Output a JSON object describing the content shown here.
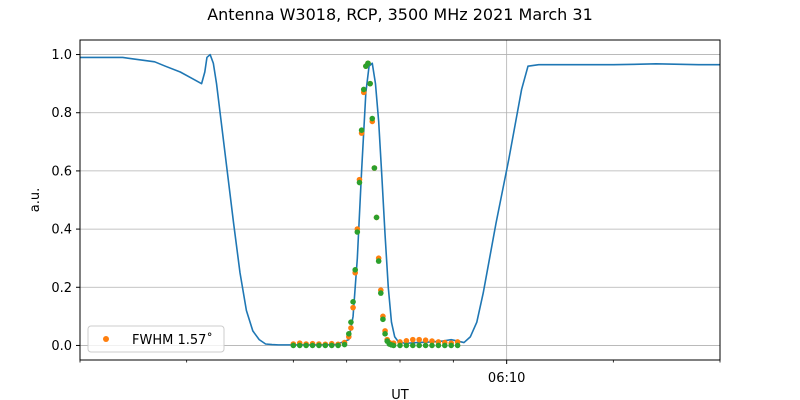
{
  "chart_data": {
    "type": "line",
    "title": "Antenna W3018, RCP, 3500 MHz 2021 March 31",
    "xlabel": "UT",
    "ylabel": "a.u.",
    "x_unit": "minutes relative to 06:10 UT",
    "xlim": [
      -20,
      10
    ],
    "ylim": [
      -0.05,
      1.05
    ],
    "yticks": [
      0.0,
      0.2,
      0.4,
      0.6,
      0.8,
      1.0
    ],
    "ytick_labels": [
      "0.0",
      "0.2",
      "0.4",
      "0.6",
      "0.8",
      "1.0"
    ],
    "xticks_major": [
      {
        "value": 0,
        "label": "06:10"
      }
    ],
    "xticks_minor": [
      -20,
      -15,
      -10,
      -7.5,
      -5,
      -2.5,
      5,
      10
    ],
    "grid": true,
    "legend": {
      "placement": "lower-left",
      "entries": [
        {
          "label": "FWHM 1.57$^\\circ$",
          "display": "FWHM 1.57˚",
          "color": "#ff7f0e",
          "marker": "circle"
        }
      ]
    },
    "series": [
      {
        "kind": "line",
        "color": "#1f77b4",
        "x": [
          -20,
          -19.0,
          -18.0,
          -17.5,
          -16.5,
          -16.0,
          -15.3,
          -14.8,
          -14.3,
          -14.15,
          -14.05,
          -13.9,
          -13.75,
          -13.6,
          -13.4,
          -13.1,
          -12.8,
          -12.5,
          -12.2,
          -11.9,
          -11.6,
          -11.3,
          -11.0,
          -10.7,
          -10.0,
          -9.0,
          -8.0,
          -7.4,
          -7.2,
          -7.0,
          -6.8,
          -6.6,
          -6.45,
          -6.3,
          -6.15,
          -6.0,
          -5.85,
          -5.7,
          -5.55,
          -5.4,
          -5.25,
          -5.1,
          -4.95,
          -4.8,
          -4.6,
          -4.2,
          -3.5,
          -3.0,
          -2.6,
          -2.3,
          -2.0,
          -1.7,
          -1.4,
          -1.1,
          -0.8,
          -0.5,
          -0.2,
          0.1,
          0.4,
          0.7,
          1.0,
          1.5,
          2.0,
          3.0,
          5.0,
          7.0,
          9.0,
          10.0
        ],
        "y": [
          0.99,
          0.99,
          0.99,
          0.985,
          0.975,
          0.96,
          0.94,
          0.92,
          0.9,
          0.94,
          0.99,
          1.0,
          0.97,
          0.9,
          0.78,
          0.6,
          0.42,
          0.25,
          0.12,
          0.05,
          0.02,
          0.005,
          0.003,
          0.002,
          0.002,
          0.002,
          0.003,
          0.02,
          0.1,
          0.3,
          0.6,
          0.87,
          0.96,
          0.97,
          0.9,
          0.77,
          0.58,
          0.38,
          0.2,
          0.08,
          0.03,
          0.015,
          0.01,
          0.008,
          0.008,
          0.01,
          0.012,
          0.015,
          0.02,
          0.015,
          0.01,
          0.03,
          0.08,
          0.18,
          0.3,
          0.42,
          0.53,
          0.64,
          0.76,
          0.88,
          0.96,
          0.965,
          0.965,
          0.965,
          0.965,
          0.968,
          0.965,
          0.965
        ]
      },
      {
        "kind": "scatter",
        "color": "#ff7f0e",
        "name": "FWHM 1.57$^\\circ$",
        "x": [
          -10.0,
          -9.7,
          -9.4,
          -9.1,
          -8.8,
          -8.5,
          -8.2,
          -7.9,
          -7.6,
          -7.4,
          -7.3,
          -7.2,
          -7.1,
          -7.0,
          -6.9,
          -6.8,
          -6.7,
          -6.6,
          -6.5,
          -6.4,
          -6.3,
          -6.2,
          -6.1,
          -6.0,
          -5.9,
          -5.8,
          -5.7,
          -5.6,
          -5.5,
          -5.4,
          -5.3,
          -5.0,
          -4.7,
          -4.4,
          -4.1,
          -3.8,
          -3.5,
          -3.2,
          -2.9,
          -2.6,
          -2.3
        ],
        "y": [
          0.005,
          0.008,
          0.005,
          0.006,
          0.005,
          0.004,
          0.006,
          0.004,
          0.01,
          0.03,
          0.06,
          0.13,
          0.25,
          0.4,
          0.57,
          0.73,
          0.87,
          0.96,
          0.97,
          0.9,
          0.77,
          0.61,
          0.44,
          0.3,
          0.19,
          0.1,
          0.05,
          0.02,
          0.01,
          0.006,
          0.008,
          0.012,
          0.016,
          0.02,
          0.02,
          0.018,
          0.015,
          0.012,
          0.01,
          0.008,
          0.012
        ]
      },
      {
        "kind": "scatter",
        "color": "#2ca02c",
        "x": [
          -10.0,
          -9.7,
          -9.4,
          -9.1,
          -8.8,
          -8.5,
          -8.2,
          -7.9,
          -7.6,
          -7.4,
          -7.3,
          -7.2,
          -7.1,
          -7.0,
          -6.9,
          -6.8,
          -6.7,
          -6.6,
          -6.5,
          -6.4,
          -6.3,
          -6.2,
          -6.1,
          -6.0,
          -5.9,
          -5.8,
          -5.7,
          -5.6,
          -5.5,
          -5.4,
          -5.3,
          -5.0,
          -4.7,
          -4.4,
          -4.1,
          -3.8,
          -3.5,
          -3.2,
          -2.9,
          -2.6,
          -2.3
        ],
        "y": [
          0.0,
          0.0,
          0.0,
          0.0,
          0.0,
          0.0,
          0.0,
          0.0,
          0.003,
          0.04,
          0.08,
          0.15,
          0.26,
          0.39,
          0.56,
          0.74,
          0.88,
          0.96,
          0.97,
          0.9,
          0.78,
          0.61,
          0.44,
          0.29,
          0.18,
          0.09,
          0.04,
          0.015,
          0.005,
          0.002,
          0.0,
          0.0,
          0.0,
          0.0,
          0.0,
          0.0,
          0.0,
          0.0,
          0.0,
          0.0,
          0.0
        ]
      }
    ]
  }
}
